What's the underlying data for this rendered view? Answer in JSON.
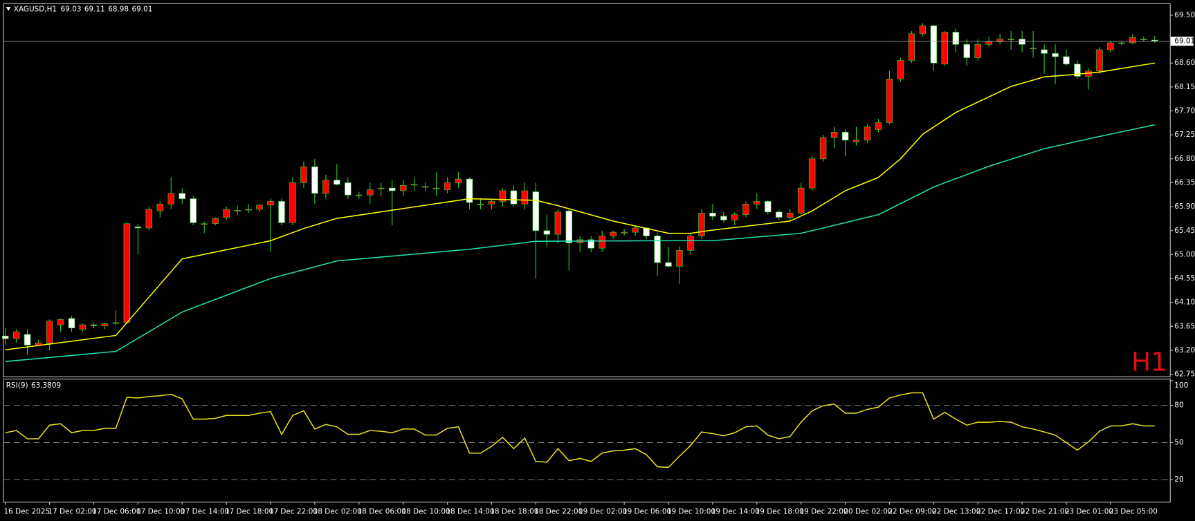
{
  "chart_data": [
    {
      "type": "candlestick",
      "title": "XAGUSD,H1",
      "header": {
        "open": 69.03,
        "high": 69.11,
        "low": 68.98,
        "close": 69.01
      },
      "timeframe_label": "H1",
      "categories": [
        "16 Dec 2025",
        null,
        null,
        null,
        "17 Dec 02:00",
        null,
        null,
        null,
        "17 Dec 06:00",
        null,
        null,
        null,
        "17 Dec 10:00",
        null,
        null,
        null,
        "17 Dec 14:00",
        null,
        null,
        null,
        "17 Dec 18:00",
        null,
        null,
        null,
        "17 Dec 22:00",
        null,
        null,
        null,
        "18 Dec 02:00",
        null,
        null,
        null,
        "18 Dec 06:00",
        null,
        null,
        null,
        "18 Dec 10:00",
        null,
        null,
        null,
        "18 Dec 14:00",
        null,
        null,
        null,
        "18 Dec 18:00",
        null,
        null,
        null,
        "18 Dec 22:00",
        null,
        null,
        null,
        "19 Dec 02:00",
        null,
        null,
        null,
        "19 Dec 06:00",
        null,
        null,
        null,
        "19 Dec 10:00",
        null,
        null,
        null,
        "19 Dec 14:00",
        null,
        null,
        null,
        "19 Dec 18:00",
        null,
        null,
        null,
        "19 Dec 22:00",
        null,
        null,
        null,
        "20 Dec 02:00",
        null,
        null,
        null,
        "22 Dec 09:00",
        null,
        null,
        null,
        "22 Dec 13:00",
        null,
        null,
        null,
        "22 Dec 17:00",
        null,
        null,
        null,
        "22 Dec 21:00",
        null,
        null,
        null,
        "23 Dec 01:00",
        null,
        null,
        null,
        "23 Dec 05:00",
        null,
        null,
        null,
        null
      ],
      "open": [
        63.47,
        63.42,
        63.5,
        63.3,
        63.33,
        63.68,
        63.8,
        63.6,
        63.68,
        63.66,
        63.72,
        63.72,
        65.52,
        65.5,
        65.82,
        65.95,
        66.15,
        66.05,
        65.58,
        65.58,
        65.7,
        65.83,
        65.85,
        65.85,
        65.93,
        66.0,
        65.6,
        66.35,
        66.65,
        66.15,
        66.4,
        66.35,
        66.12,
        66.12,
        66.25,
        66.25,
        66.2,
        66.32,
        66.28,
        66.25,
        66.22,
        66.35,
        66.42,
        65.95,
        65.95,
        66.0,
        66.2,
        65.95,
        66.18,
        65.45,
        65.38,
        65.82,
        65.22,
        65.28,
        65.12,
        65.35,
        65.42,
        65.42,
        65.5,
        65.35,
        64.85,
        64.78,
        65.08,
        65.35,
        65.78,
        65.72,
        65.65,
        65.75,
        65.95,
        66.0,
        65.8,
        65.7,
        65.78,
        66.25,
        66.8,
        67.2,
        67.3,
        67.12,
        67.15,
        67.35,
        67.48,
        68.3,
        68.65,
        69.15,
        69.3,
        68.58,
        69.18,
        68.95,
        68.7,
        68.95,
        69.0,
        69.05,
        69.05,
        68.88,
        68.85,
        68.78,
        68.72,
        68.58,
        68.35,
        68.45,
        68.85,
        68.98,
        68.98,
        69.05,
        69.03
      ],
      "high": [
        63.62,
        63.6,
        63.6,
        63.4,
        63.78,
        63.8,
        63.85,
        63.7,
        63.72,
        63.72,
        63.95,
        65.6,
        65.58,
        65.9,
        66.0,
        66.45,
        66.25,
        66.1,
        65.62,
        65.7,
        65.9,
        65.92,
        65.95,
        65.95,
        66.05,
        66.05,
        66.45,
        66.75,
        66.8,
        66.5,
        66.7,
        66.45,
        66.18,
        66.35,
        66.35,
        66.4,
        66.4,
        66.45,
        66.35,
        66.55,
        66.45,
        66.55,
        66.45,
        66.05,
        66.05,
        66.25,
        66.3,
        66.35,
        66.35,
        65.75,
        65.85,
        65.85,
        65.35,
        65.35,
        65.45,
        65.45,
        65.48,
        65.55,
        65.52,
        65.4,
        65.15,
        65.15,
        65.4,
        65.85,
        65.95,
        65.8,
        65.8,
        66.0,
        66.15,
        66.02,
        65.85,
        65.85,
        66.35,
        66.85,
        67.25,
        67.4,
        67.35,
        67.4,
        67.45,
        67.55,
        68.45,
        68.7,
        69.2,
        69.35,
        69.32,
        69.2,
        69.25,
        69.05,
        69.05,
        69.1,
        69.15,
        69.2,
        69.2,
        69.2,
        68.95,
        68.95,
        68.85,
        68.65,
        68.5,
        68.9,
        69.02,
        69.0,
        69.15,
        69.1,
        69.11
      ],
      "low": [
        63.3,
        63.35,
        63.12,
        63.28,
        63.2,
        63.55,
        63.55,
        63.55,
        63.62,
        63.6,
        63.68,
        63.7,
        65.0,
        65.45,
        65.7,
        65.85,
        65.95,
        65.55,
        65.4,
        65.55,
        65.65,
        65.75,
        65.78,
        65.8,
        65.05,
        65.55,
        65.55,
        66.25,
        65.95,
        66.05,
        66.3,
        66.05,
        66.05,
        65.95,
        66.1,
        65.55,
        66.1,
        66.2,
        66.2,
        66.1,
        66.15,
        66.25,
        65.85,
        65.85,
        65.85,
        65.9,
        65.9,
        65.85,
        64.55,
        65.15,
        65.2,
        64.7,
        65.05,
        65.05,
        65.05,
        65.3,
        65.36,
        65.35,
        65.3,
        64.6,
        64.75,
        64.45,
        65.0,
        65.3,
        65.65,
        65.6,
        65.55,
        65.7,
        65.85,
        65.75,
        65.65,
        65.65,
        65.75,
        66.2,
        66.75,
        67.0,
        66.85,
        67.05,
        67.1,
        67.3,
        67.45,
        68.25,
        68.6,
        69.1,
        68.45,
        68.55,
        68.8,
        68.55,
        68.65,
        68.9,
        68.95,
        68.85,
        68.8,
        68.7,
        68.4,
        68.2,
        68.55,
        68.3,
        68.1,
        68.4,
        68.8,
        68.94,
        68.95,
        69.0,
        68.98
      ],
      "close": [
        63.42,
        63.55,
        63.3,
        63.34,
        63.75,
        63.78,
        63.62,
        63.68,
        63.67,
        63.7,
        63.72,
        65.58,
        65.5,
        65.85,
        65.95,
        66.15,
        66.05,
        65.6,
        65.58,
        65.68,
        65.85,
        65.83,
        65.85,
        65.93,
        66.0,
        65.6,
        66.35,
        66.65,
        66.15,
        66.4,
        66.32,
        66.12,
        66.12,
        66.22,
        66.25,
        66.2,
        66.3,
        66.32,
        66.28,
        66.25,
        66.35,
        66.42,
        65.98,
        65.95,
        66.0,
        66.2,
        65.95,
        66.2,
        65.45,
        65.38,
        65.8,
        65.22,
        65.28,
        65.12,
        65.35,
        65.42,
        65.42,
        65.5,
        65.35,
        64.85,
        64.78,
        65.08,
        65.35,
        65.78,
        65.72,
        65.65,
        65.75,
        65.95,
        66.0,
        65.8,
        65.7,
        65.78,
        66.25,
        66.8,
        67.2,
        67.3,
        67.15,
        67.15,
        67.4,
        67.48,
        68.3,
        68.65,
        69.15,
        69.3,
        68.6,
        69.18,
        68.95,
        68.7,
        68.95,
        69.0,
        69.05,
        69.05,
        68.95,
        68.88,
        68.78,
        68.72,
        68.58,
        68.35,
        68.45,
        68.85,
        68.98,
        68.98,
        69.08,
        69.05,
        69.01
      ],
      "up_color": "#ff0000",
      "down_color": "#ffffff",
      "wick_color": "#32cd32",
      "overlays": [
        {
          "color": "#ffff00",
          "x": [
            0,
            10,
            16,
            24,
            27,
            30,
            42,
            48,
            50,
            55,
            60,
            62,
            64,
            71,
            73,
            76,
            79,
            81,
            83,
            86,
            91,
            94,
            97,
            99,
            104
          ],
          "values": [
            63.21,
            63.48,
            64.92,
            65.26,
            65.49,
            65.68,
            66.05,
            66.02,
            65.92,
            65.63,
            65.4,
            65.4,
            65.46,
            65.63,
            65.82,
            66.2,
            66.45,
            66.8,
            67.26,
            67.67,
            68.16,
            68.34,
            68.39,
            68.43,
            68.6
          ]
        },
        {
          "color": "#20e0b0",
          "x": [
            0,
            10,
            16,
            24,
            30,
            42,
            48,
            59,
            64,
            72,
            79,
            84,
            89,
            94,
            99,
            104
          ],
          "values": [
            62.99,
            63.18,
            63.92,
            64.55,
            64.88,
            65.1,
            65.25,
            65.26,
            65.26,
            65.4,
            65.75,
            66.27,
            66.66,
            66.99,
            67.22,
            67.44
          ]
        }
      ],
      "ylim": [
        62.71,
        69.71
      ],
      "yticks": [
        {
          "value": 69.5,
          "label": "69.50"
        },
        {
          "value": 68.6,
          "label": "68.60"
        },
        68.15,
        {
          "value": 67.7,
          "label": "67.70"
        },
        67.25,
        {
          "value": 66.8,
          "label": "66.80"
        },
        66.35,
        {
          "value": 65.9,
          "label": "65.90"
        },
        65.45,
        {
          "value": 65,
          "label": "65.00"
        },
        64.55,
        {
          "value": 64.1,
          "label": "64.10"
        },
        63.65,
        {
          "value": 63.2,
          "label": "63.20"
        },
        62.75
      ]
    },
    {
      "type": "line",
      "title": "RSI(9)",
      "value": 63.3809,
      "color": "#e8e020",
      "values": [
        57.9,
        59.7,
        53,
        53,
        64,
        65.2,
        57.9,
        59.7,
        59.7,
        61.5,
        61.5,
        86.6,
        86,
        87.2,
        87.8,
        89,
        85.3,
        68.9,
        68.9,
        69.5,
        71.9,
        71.9,
        71.9,
        73.7,
        75,
        56.6,
        71.9,
        75.6,
        60.9,
        64.6,
        62.7,
        56.6,
        56.6,
        59.7,
        59.1,
        57.9,
        60.9,
        60.9,
        56,
        56,
        61.5,
        62.7,
        41.4,
        41.4,
        46.9,
        54.2,
        45,
        53.6,
        34.7,
        34,
        45,
        35.3,
        37.1,
        34.7,
        41.4,
        43.2,
        43.8,
        45,
        40.2,
        30.4,
        29.8,
        38.9,
        47.5,
        58.5,
        57.2,
        55.4,
        57.9,
        62.7,
        63.4,
        56,
        53,
        54.8,
        66.4,
        75.6,
        79.8,
        81.1,
        73.7,
        73.7,
        76.8,
        78.6,
        86,
        88.4,
        90.2,
        90.2,
        68.9,
        74.4,
        68.9,
        64,
        66.4,
        66.4,
        67,
        66.4,
        62.7,
        60.9,
        58.5,
        56,
        49.9,
        43.8,
        50.5,
        59.1,
        63.4,
        63.4,
        65.2,
        63.4,
        63.38
      ],
      "ylim": [
        2,
        101
      ],
      "yticks": [
        20,
        50,
        80,
        100
      ],
      "levels": [
        20,
        50,
        80
      ]
    }
  ]
}
